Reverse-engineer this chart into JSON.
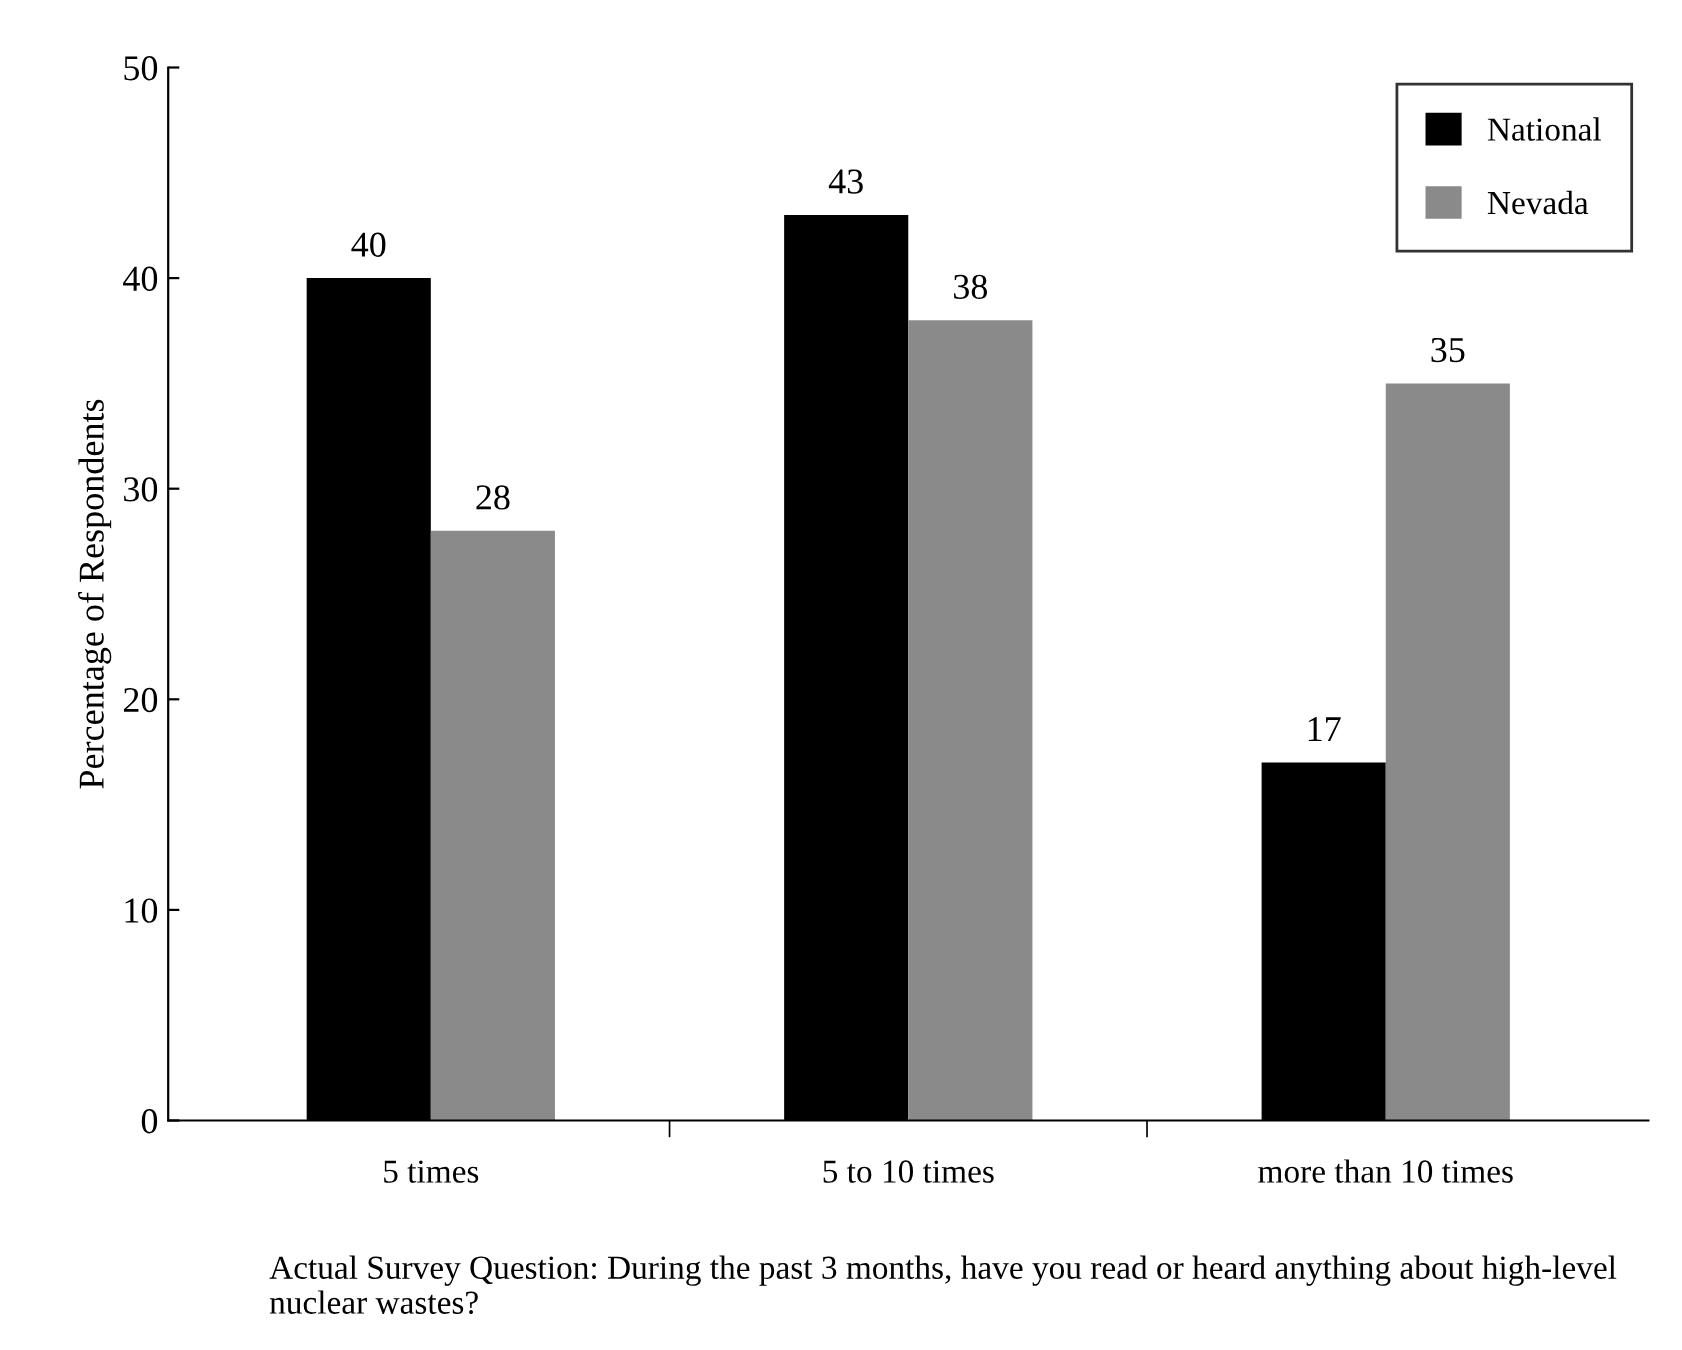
{
  "chart_data": {
    "type": "bar",
    "ylabel": "Percentage of Respondents",
    "categories": [
      "5 times",
      "5 to 10 times",
      "more than 10 times"
    ],
    "series": [
      {
        "name": "National",
        "color": "#000000",
        "values": [
          40,
          43,
          17
        ]
      },
      {
        "name": "Nevada",
        "color": "#8a8a8a",
        "values": [
          28,
          38,
          35
        ]
      }
    ],
    "ylim": [
      0,
      50
    ],
    "yticks": [
      0,
      10,
      20,
      30,
      40,
      50
    ],
    "grid": false,
    "legend": "top right",
    "data_labels": true,
    "annotations": [
      "Actual Survey Question: During the past 3 months, have you read or heard anything about high-level nuclear wastes?"
    ]
  }
}
